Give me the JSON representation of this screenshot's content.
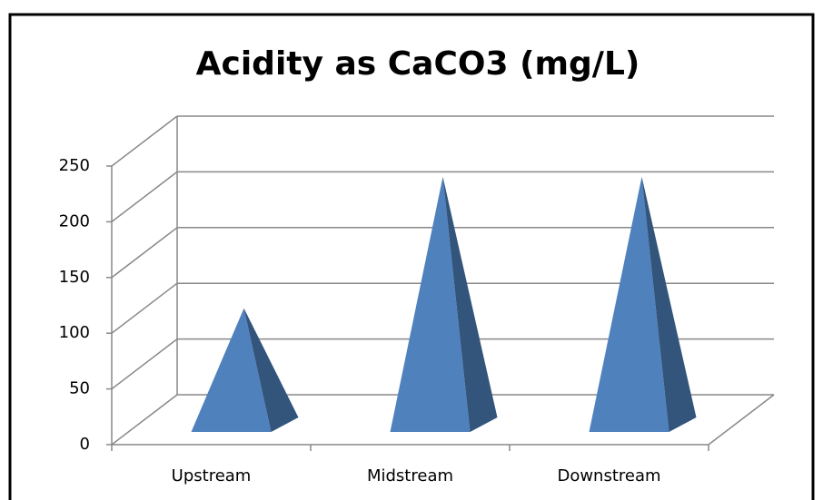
{
  "chart_data": {
    "type": "pyramid3d",
    "title": "Acidity as CaCO3 (mg/L)",
    "categories": [
      "Upstream",
      "Midstream",
      "Downstream"
    ],
    "values": [
      100,
      218,
      218
    ],
    "color": "#4f81bd",
    "ylim": [
      0,
      250
    ],
    "yticks": [
      0,
      50,
      100,
      150,
      200,
      250
    ],
    "grid": true
  }
}
